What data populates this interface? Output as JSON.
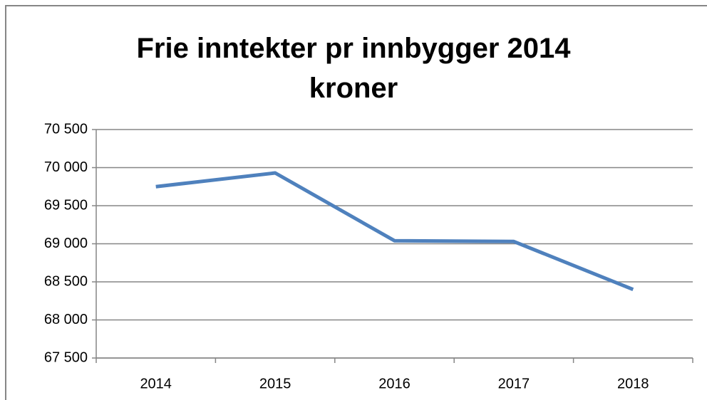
{
  "chart_data": {
    "type": "line",
    "title": "Frie inntekter pr innbygger 2014 kroner",
    "categories": [
      "2014",
      "2015",
      "2016",
      "2017",
      "2018"
    ],
    "series": [
      {
        "name": null,
        "color": "#4f81bd",
        "values": [
          69750,
          69930,
          69040,
          69030,
          68400
        ]
      }
    ],
    "ylim": [
      67500,
      70500
    ],
    "yticks": [
      {
        "value": 67500,
        "label": "67 500"
      },
      {
        "value": 68000,
        "label": "68 000"
      },
      {
        "value": 68500,
        "label": "68 500"
      },
      {
        "value": 69000,
        "label": "69 000"
      },
      {
        "value": 69500,
        "label": "69 500"
      },
      {
        "value": 70000,
        "label": "70 000"
      },
      {
        "value": 70500,
        "label": "70 500"
      }
    ],
    "grid": true
  }
}
